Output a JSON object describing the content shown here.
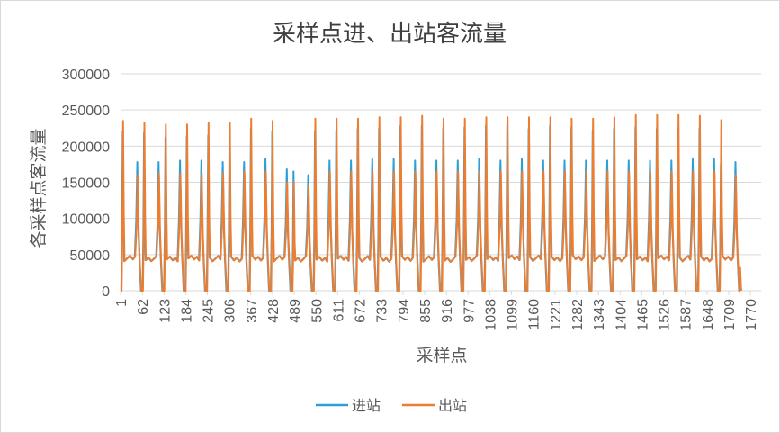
{
  "chart_data": {
    "type": "line",
    "title": "采样点进、出站客流量",
    "xlabel": "采样点",
    "ylabel": "各采样点客流量",
    "ylim": [
      0,
      300000
    ],
    "yticks": [
      "0",
      "50000",
      "100000",
      "150000",
      "200000",
      "250000",
      "300000"
    ],
    "xlim": [
      1,
      1800
    ],
    "xticks": [
      1,
      62,
      123,
      184,
      245,
      306,
      367,
      428,
      489,
      550,
      611,
      672,
      733,
      794,
      855,
      916,
      977,
      1038,
      1099,
      1160,
      1221,
      1282,
      1343,
      1404,
      1465,
      1526,
      1587,
      1648,
      1709,
      1770
    ],
    "grid": true,
    "legend_position": "bottom",
    "period_samples": 60,
    "days": 30,
    "series": [
      {
        "name": "进站",
        "color": "#2E9FD6",
        "daily_first_peak": [
          220000,
          218000,
          212000,
          214000,
          215000,
          218000,
          225000,
          220000,
          165000,
          220000,
          222000,
          224000,
          225000,
          228000,
          228000,
          225000,
          226000,
          228000,
          230000,
          224000,
          228000,
          226000,
          222000,
          224000,
          226000,
          224000,
          226000,
          224000,
          175000,
          0
        ],
        "daily_second_peak": [
          178000,
          178000,
          180000,
          180000,
          178000,
          178000,
          182000,
          168000,
          160000,
          180000,
          180000,
          182000,
          182000,
          180000,
          180000,
          180000,
          182000,
          180000,
          182000,
          180000,
          180000,
          180000,
          180000,
          180000,
          180000,
          180000,
          182000,
          182000,
          178000,
          0
        ],
        "baseline": 40000,
        "trough": 0
      },
      {
        "name": "出站",
        "color": "#ED7D31",
        "daily_first_peak": [
          235000,
          232000,
          230000,
          230000,
          232000,
          232000,
          238000,
          235000,
          150000,
          238000,
          238000,
          238000,
          240000,
          240000,
          242000,
          238000,
          238000,
          240000,
          240000,
          240000,
          240000,
          238000,
          238000,
          240000,
          243000,
          243000,
          243000,
          242000,
          236000,
          0
        ],
        "daily_second_peak": [
          160000,
          162000,
          162000,
          162000,
          162000,
          165000,
          165000,
          150000,
          145000,
          165000,
          165000,
          165000,
          165000,
          165000,
          165000,
          165000,
          165000,
          165000,
          165000,
          165000,
          165000,
          165000,
          165000,
          165000,
          165000,
          165000,
          165000,
          165000,
          160000,
          0
        ],
        "baseline": 40000,
        "trough": 0
      }
    ]
  }
}
